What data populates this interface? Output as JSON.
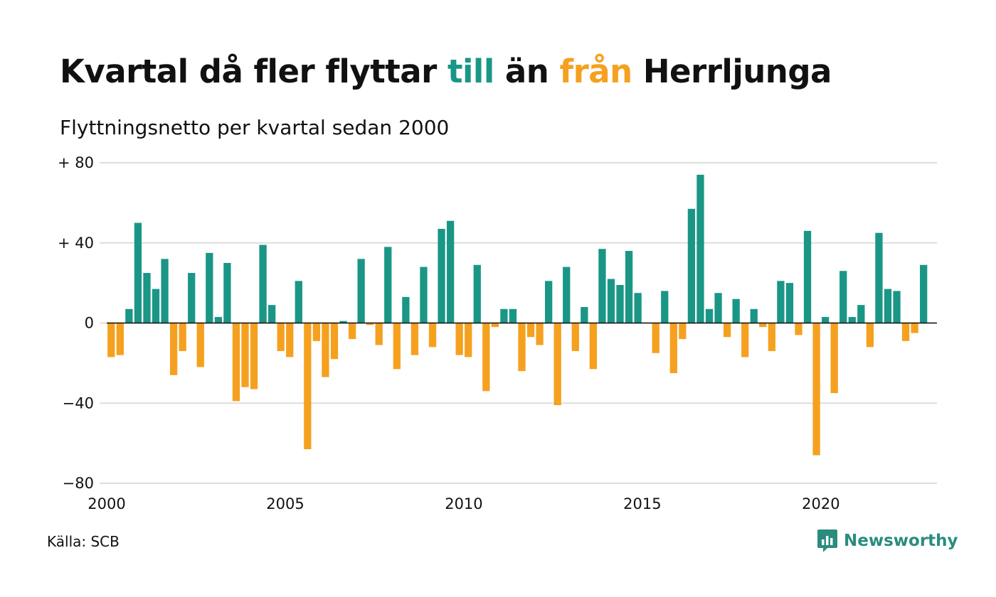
{
  "title": {
    "part1": "Kvartal då fler flyttar ",
    "till": "till",
    "part2": " än ",
    "fran": "från",
    "part3": " Herrljunga"
  },
  "subtitle": "Flyttningsnetto per kvartal sedan 2000",
  "source": "Källa: SCB",
  "brand": {
    "name": "Newsworthy",
    "icon": "newsworthy-logo-icon"
  },
  "colors": {
    "positive": "#1a9686",
    "negative": "#f5a11f",
    "grid": "#dddddd",
    "text": "#111111"
  },
  "chart_data": {
    "type": "bar",
    "x_start": 2000,
    "x_step": 0.25,
    "xlim": [
      2000,
      2023.25
    ],
    "ylim": [
      -80,
      80
    ],
    "y_ticks": [
      80,
      40,
      0,
      -40,
      -80
    ],
    "y_tick_labels": [
      "+ 80",
      "+ 40",
      "0",
      "−40",
      "−80"
    ],
    "x_ticks": [
      2000,
      2005,
      2010,
      2015,
      2020
    ],
    "x_tick_labels": [
      "2000",
      "2005",
      "2010",
      "2015",
      "2020"
    ],
    "grid": true,
    "legend": "none",
    "values": [
      -17,
      -16,
      7,
      50,
      25,
      17,
      32,
      -26,
      -14,
      25,
      -22,
      35,
      3,
      30,
      -39,
      -32,
      -33,
      39,
      9,
      -14,
      -17,
      21,
      -63,
      -9,
      -27,
      -18,
      1,
      -8,
      32,
      -1,
      -11,
      38,
      -23,
      13,
      -16,
      28,
      -12,
      47,
      51,
      -16,
      -17,
      29,
      -34,
      -2,
      7,
      7,
      -24,
      -7,
      -11,
      21,
      -41,
      28,
      -14,
      8,
      -23,
      37,
      22,
      19,
      36,
      15,
      0,
      -15,
      16,
      -25,
      -8,
      57,
      74,
      7,
      15,
      -7,
      12,
      -17,
      7,
      -2,
      -14,
      21,
      20,
      -6,
      46,
      -66,
      3,
      -35,
      26,
      3,
      9,
      -12,
      45,
      17,
      16,
      -9,
      -5,
      29
    ]
  }
}
